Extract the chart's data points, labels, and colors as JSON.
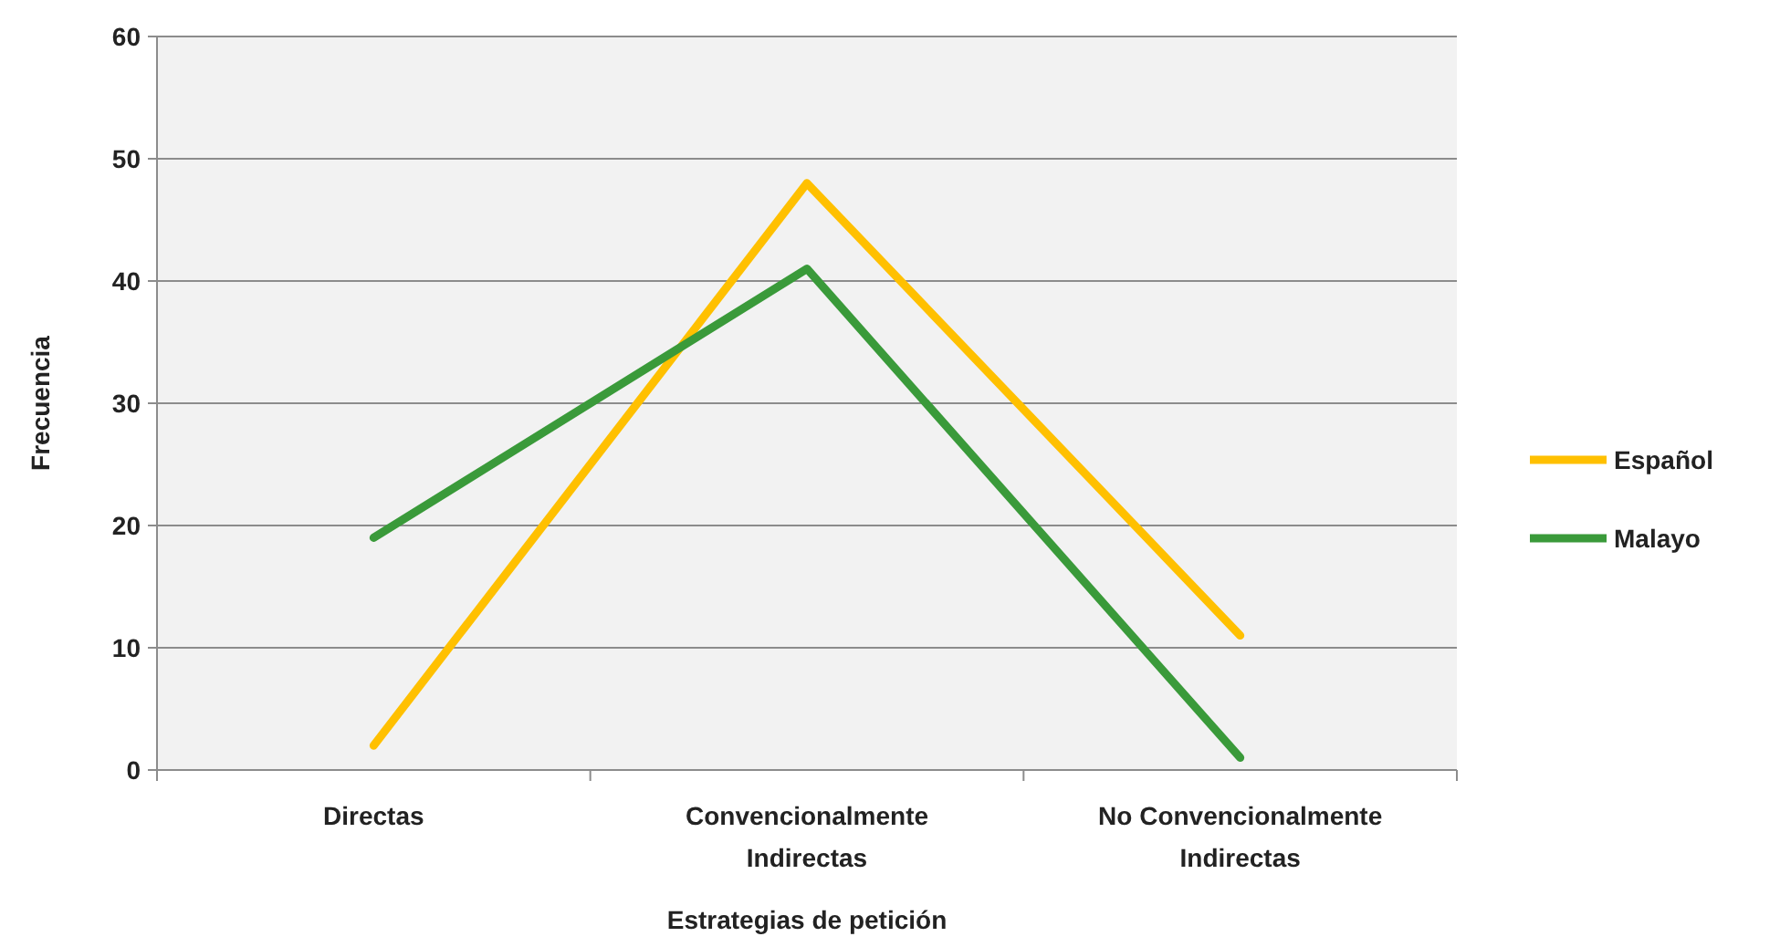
{
  "chart_data": {
    "type": "line",
    "xlabel": "Estrategias de petición",
    "ylabel": "Frecuencia",
    "categories": [
      "Directas",
      "Convencionalmente Indirectas",
      "No Convencionalmente Indirectas"
    ],
    "series": [
      {
        "name": "Español",
        "color": "#ffc000",
        "values": [
          2,
          48,
          11
        ]
      },
      {
        "name": "Malayo",
        "color": "#3a9a3a",
        "values": [
          19,
          41,
          1
        ]
      }
    ],
    "ylim": [
      0,
      60
    ],
    "yticks": [
      0,
      10,
      20,
      30,
      40,
      50,
      60
    ],
    "grid": "y",
    "legend": "right",
    "marker": "none",
    "line_style": "solid"
  }
}
